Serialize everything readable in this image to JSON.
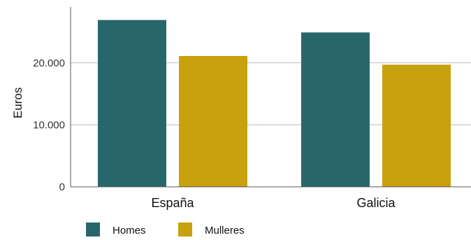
{
  "chart_data": {
    "type": "bar",
    "title": "",
    "xlabel": "",
    "ylabel": "Euros",
    "categories": [
      "España",
      "Galicia"
    ],
    "series": [
      {
        "name": "Homes",
        "color": "#27676c",
        "values": [
          26900,
          24900
        ]
      },
      {
        "name": "Mulleres",
        "color": "#c8a10e",
        "values": [
          21100,
          19700
        ]
      }
    ],
    "ylim": [
      0,
      29000
    ],
    "yticks": [
      0,
      10000,
      20000
    ],
    "ytick_labels": [
      "0",
      "10.000",
      "20.000"
    ],
    "grid": true,
    "legend_position": "bottom-left"
  }
}
